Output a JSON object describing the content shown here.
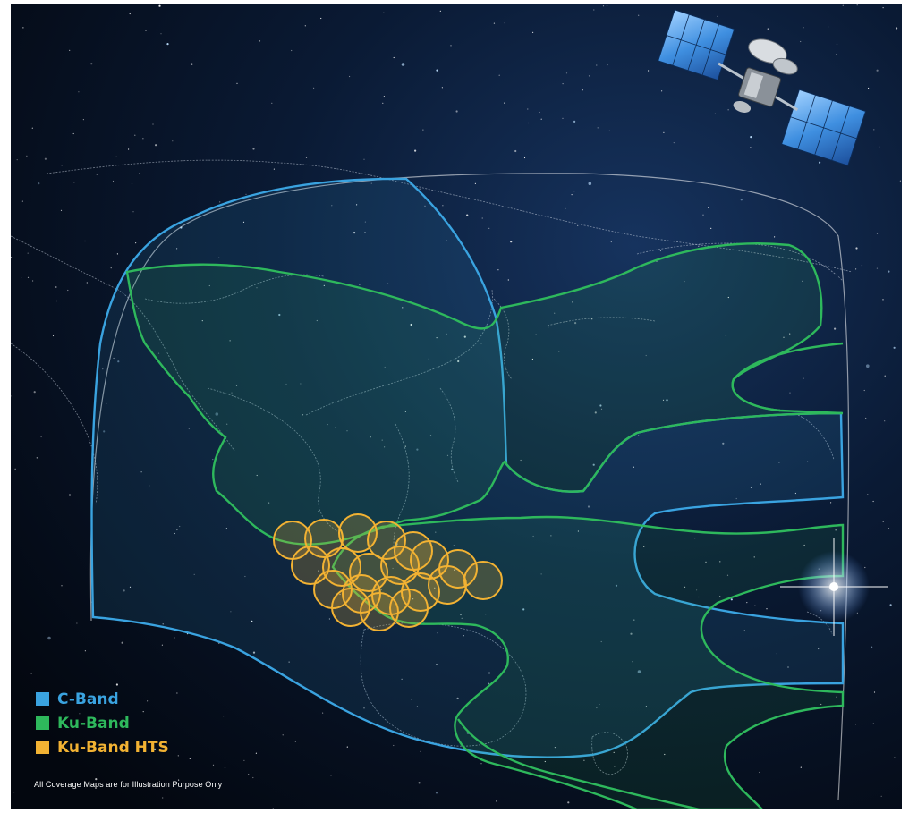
{
  "legend": {
    "items": [
      {
        "label": "C-Band",
        "color": "#3aa3e0"
      },
      {
        "label": "Ku-Band",
        "color": "#2eb85c"
      },
      {
        "label": "Ku-Band HTS",
        "color": "#f2b233"
      }
    ]
  },
  "disclaimer": "All Coverage Maps are for Illustration Purpose Only",
  "colors": {
    "space_top": "#0b1d3a",
    "space_bottom": "#050b1a",
    "c_band": "#3aa3e0",
    "ku_band": "#2eb85c",
    "ku_hts": "#f2b233",
    "coastline": "#cfd9e6"
  },
  "icons": [
    "satellite-icon",
    "star-flare-icon"
  ]
}
